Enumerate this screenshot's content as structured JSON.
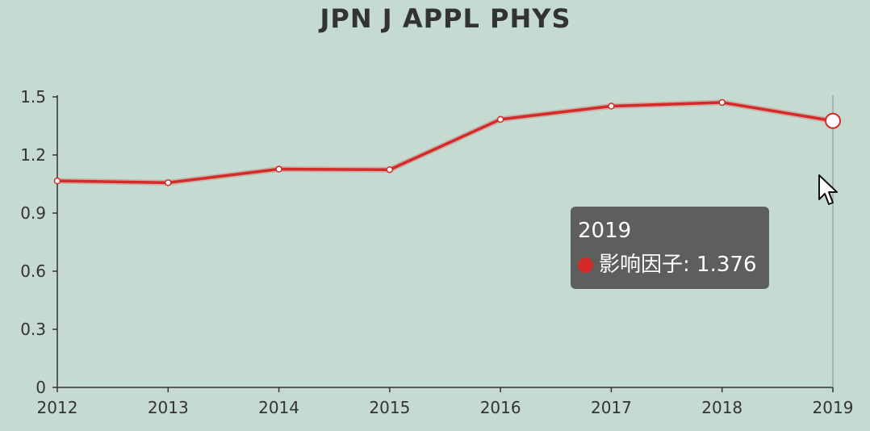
{
  "chart_data": {
    "type": "line",
    "title": "JPN J APPL PHYS",
    "categories": [
      "2012",
      "2013",
      "2014",
      "2015",
      "2016",
      "2017",
      "2018",
      "2019"
    ],
    "series": [
      {
        "name": "影响因子",
        "values": [
          1.066,
          1.057,
          1.127,
          1.124,
          1.384,
          1.452,
          1.471,
          1.376
        ]
      }
    ],
    "yticks": [
      "0",
      "0.3",
      "0.6",
      "0.9",
      "1.2",
      "1.5"
    ],
    "ylim": [
      0,
      1.5
    ],
    "grid": false,
    "colors": {
      "series": "#d42a28",
      "axis": "#333333",
      "background": "#c5dbd2"
    },
    "tooltip": {
      "title": "2019",
      "label": "影响因子",
      "value": "1.376"
    }
  }
}
